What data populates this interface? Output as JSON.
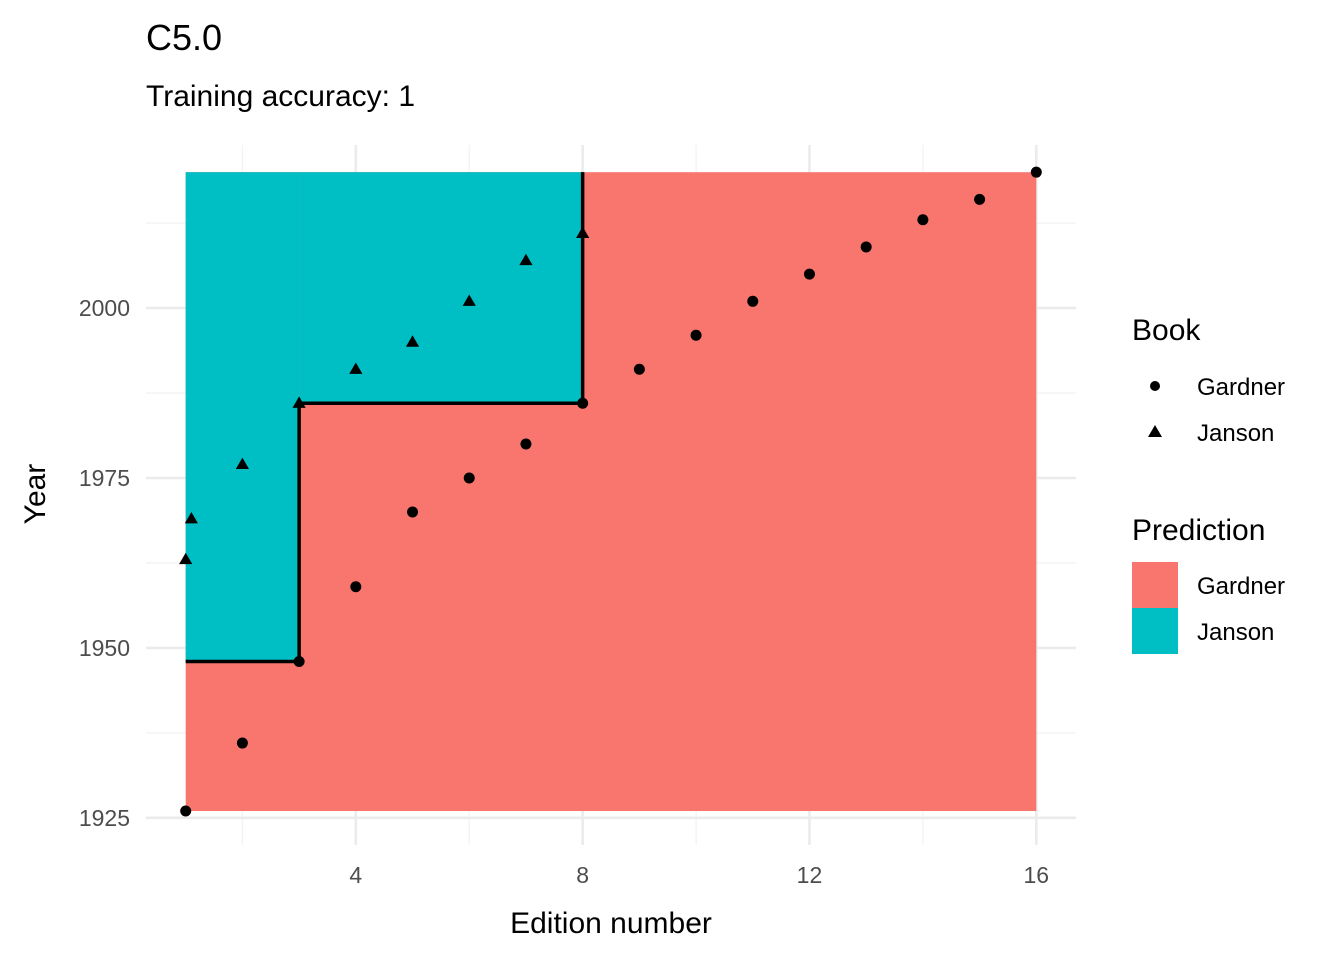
{
  "chart_data": {
    "type": "scatter",
    "title": "C5.0",
    "subtitle": "Training accuracy: 1",
    "xlabel": "Edition number",
    "ylabel": "Year",
    "xlim": [
      0.3,
      16.7
    ],
    "ylim": [
      1921.0,
      2024.0
    ],
    "x_ticks": [
      4,
      8,
      12,
      16
    ],
    "y_ticks": [
      1925,
      1950,
      1975,
      2000
    ],
    "grid": true,
    "legend_position": "right",
    "series": [
      {
        "name": "Gardner",
        "shape": "circle",
        "points": [
          [
            1,
            1926
          ],
          [
            2,
            1936
          ],
          [
            3,
            1948
          ],
          [
            4,
            1959
          ],
          [
            5,
            1970
          ],
          [
            6,
            1975
          ],
          [
            7,
            1980
          ],
          [
            8,
            1986
          ],
          [
            9,
            1991
          ],
          [
            10,
            1996
          ],
          [
            11,
            2001
          ],
          [
            12,
            2005
          ],
          [
            13,
            2009
          ],
          [
            14,
            2013
          ],
          [
            15,
            2016
          ],
          [
            16,
            2020
          ]
        ]
      },
      {
        "name": "Janson",
        "shape": "triangle",
        "points": [
          [
            1,
            1963
          ],
          [
            1.1,
            1969
          ],
          [
            2,
            1977
          ],
          [
            3,
            1986
          ],
          [
            4,
            1991
          ],
          [
            5,
            1995
          ],
          [
            6,
            2001
          ],
          [
            7,
            2007
          ],
          [
            8,
            2011
          ]
        ]
      }
    ],
    "decision_regions": [
      {
        "prediction": "Gardner",
        "x": [
          1,
          16
        ],
        "y": [
          1926,
          2020
        ]
      },
      {
        "prediction": "Janson",
        "x": [
          1,
          3
        ],
        "y": [
          1948,
          2020
        ]
      },
      {
        "prediction": "Janson",
        "x": [
          3,
          8
        ],
        "y": [
          1986,
          2020
        ]
      }
    ],
    "boundary": [
      [
        1,
        1948
      ],
      [
        3,
        1948
      ],
      [
        3,
        1986
      ],
      [
        8,
        1986
      ],
      [
        8,
        2020
      ]
    ],
    "legends": [
      {
        "title": "Book",
        "type": "shape",
        "items": [
          {
            "label": "Gardner",
            "shape": "circle"
          },
          {
            "label": "Janson",
            "shape": "triangle"
          }
        ]
      },
      {
        "title": "Prediction",
        "type": "fill",
        "items": [
          {
            "label": "Gardner",
            "color": "#F8766D"
          },
          {
            "label": "Janson",
            "color": "#00BFC4"
          }
        ]
      }
    ],
    "colors": {
      "Gardner": "#F8766D",
      "Janson": "#00BFC4",
      "points": "#000000",
      "boundary": "#000000"
    }
  }
}
